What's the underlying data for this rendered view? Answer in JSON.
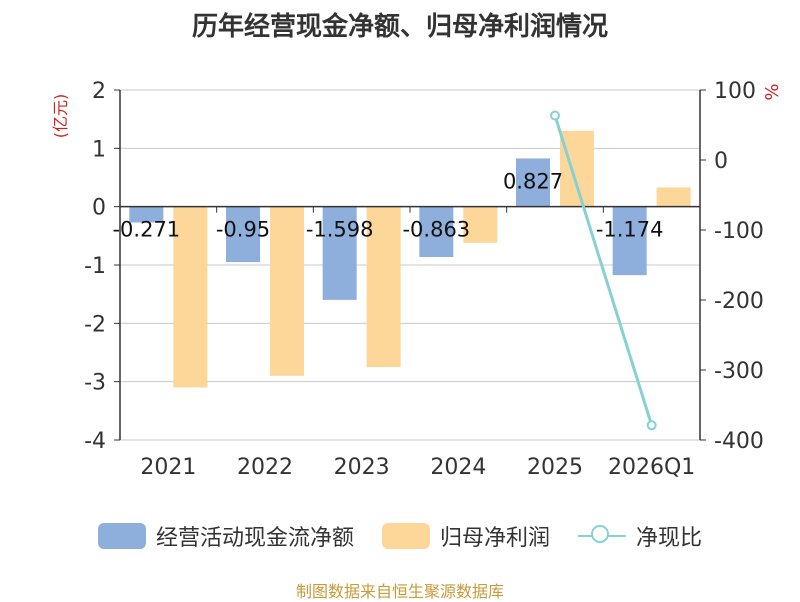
{
  "chart_data": {
    "type": "bar+line",
    "title": "历年经营现金净额、归母净利润情况",
    "categories": [
      "2021",
      "2022",
      "2023",
      "2024",
      "2025",
      "2026Q1"
    ],
    "y_left_unit": "(亿元)",
    "y_right_unit": "%",
    "y_left_ticks": [
      "2",
      "1",
      "0",
      "-1",
      "-2",
      "-3",
      "-4"
    ],
    "y_right_ticks": [
      "100",
      "0",
      "-100",
      "-200",
      "-300",
      "-400"
    ],
    "y_left_range": [
      -4,
      2
    ],
    "y_right_range": [
      -400,
      100
    ],
    "series": [
      {
        "name": "经营活动现金流净额",
        "axis": "left",
        "kind": "bar",
        "color": "#8eaedc",
        "values": [
          -0.271,
          -0.95,
          -1.598,
          -0.863,
          0.827,
          -1.174
        ],
        "labels": [
          "-0.271",
          "-0.95",
          "-1.598",
          "-0.863",
          "0.827",
          "-1.174"
        ]
      },
      {
        "name": "归母净利润",
        "axis": "left",
        "kind": "bar",
        "color": "#fdd699",
        "values": [
          -3.1,
          -2.9,
          -2.75,
          -0.62,
          1.3,
          0.33
        ]
      },
      {
        "name": "净现比",
        "axis": "right",
        "kind": "line",
        "color": "#86d1d6",
        "values": [
          null,
          null,
          null,
          null,
          63.6,
          -379
        ]
      }
    ],
    "source": "制图数据来自恒生聚源数据库"
  }
}
